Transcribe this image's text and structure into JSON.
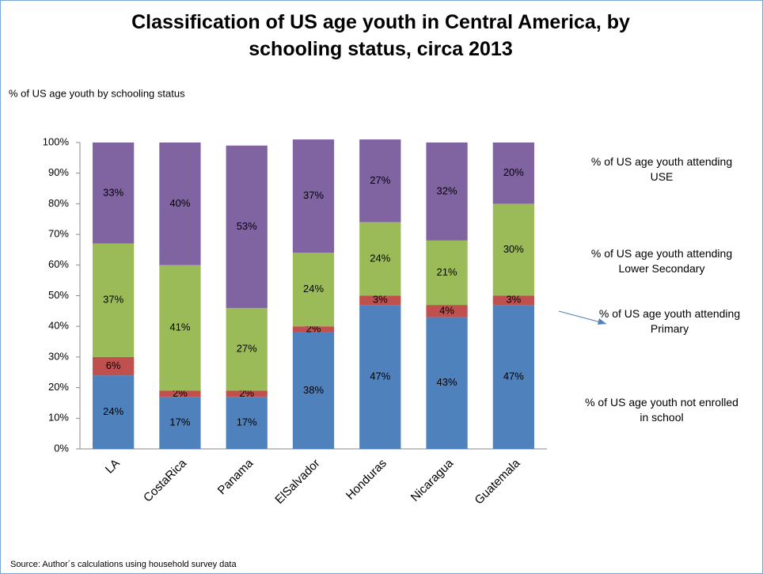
{
  "chart_data": {
    "type": "stacked_bar",
    "title": "Classification of US age youth in Central America, by schooling status, circa 2013",
    "y_label": "% of US age youth by schooling status",
    "source": "Source: Author´s calculations using household survey data",
    "categories": [
      "LA",
      "CostaRica",
      "Panama",
      "ElSalvador",
      "Honduras",
      "Nicaragua",
      "Guatemala"
    ],
    "series": [
      {
        "name": "% of US age youth not enrolled in school",
        "color": "#4f81bd",
        "values": [
          24,
          17,
          17,
          38,
          47,
          43,
          47
        ],
        "value_labels": [
          "24%",
          "17%",
          "17%",
          "38%",
          "47%",
          "43%",
          "47%"
        ]
      },
      {
        "name": "% of US age youth attending Primary",
        "color": "#c0504d",
        "values": [
          6,
          2,
          2,
          2,
          3,
          4,
          3
        ],
        "value_labels": [
          "6%",
          "2%",
          "2%",
          "2%",
          "3%",
          "4%",
          "3%"
        ]
      },
      {
        "name": "% of US age youth attending Lower Secondary",
        "color": "#9bbb59",
        "values": [
          37,
          41,
          27,
          24,
          24,
          21,
          30
        ],
        "value_labels": [
          "37%",
          "41%",
          "27%",
          "24%",
          "24%",
          "21%",
          "30%"
        ]
      },
      {
        "name": "% of US age youth attending USE",
        "color": "#8064a2",
        "values": [
          33,
          40,
          53,
          37,
          27,
          32,
          20
        ],
        "value_labels": [
          "33%",
          "40%",
          "53%",
          "37%",
          "27%",
          "32%",
          "20%"
        ]
      }
    ],
    "ylim": [
      0,
      100
    ],
    "yticks": [
      {
        "value": 0,
        "label": "0%"
      },
      {
        "value": 10,
        "label": "10%"
      },
      {
        "value": 20,
        "label": "20%"
      },
      {
        "value": 30,
        "label": "30%"
      },
      {
        "value": 40,
        "label": "40%"
      },
      {
        "value": 50,
        "label": "50%"
      },
      {
        "value": 60,
        "label": "60%"
      },
      {
        "value": 70,
        "label": "70%"
      },
      {
        "value": 80,
        "label": "80%"
      },
      {
        "value": 90,
        "label": "90%"
      },
      {
        "value": 100,
        "label": "100%"
      }
    ]
  }
}
